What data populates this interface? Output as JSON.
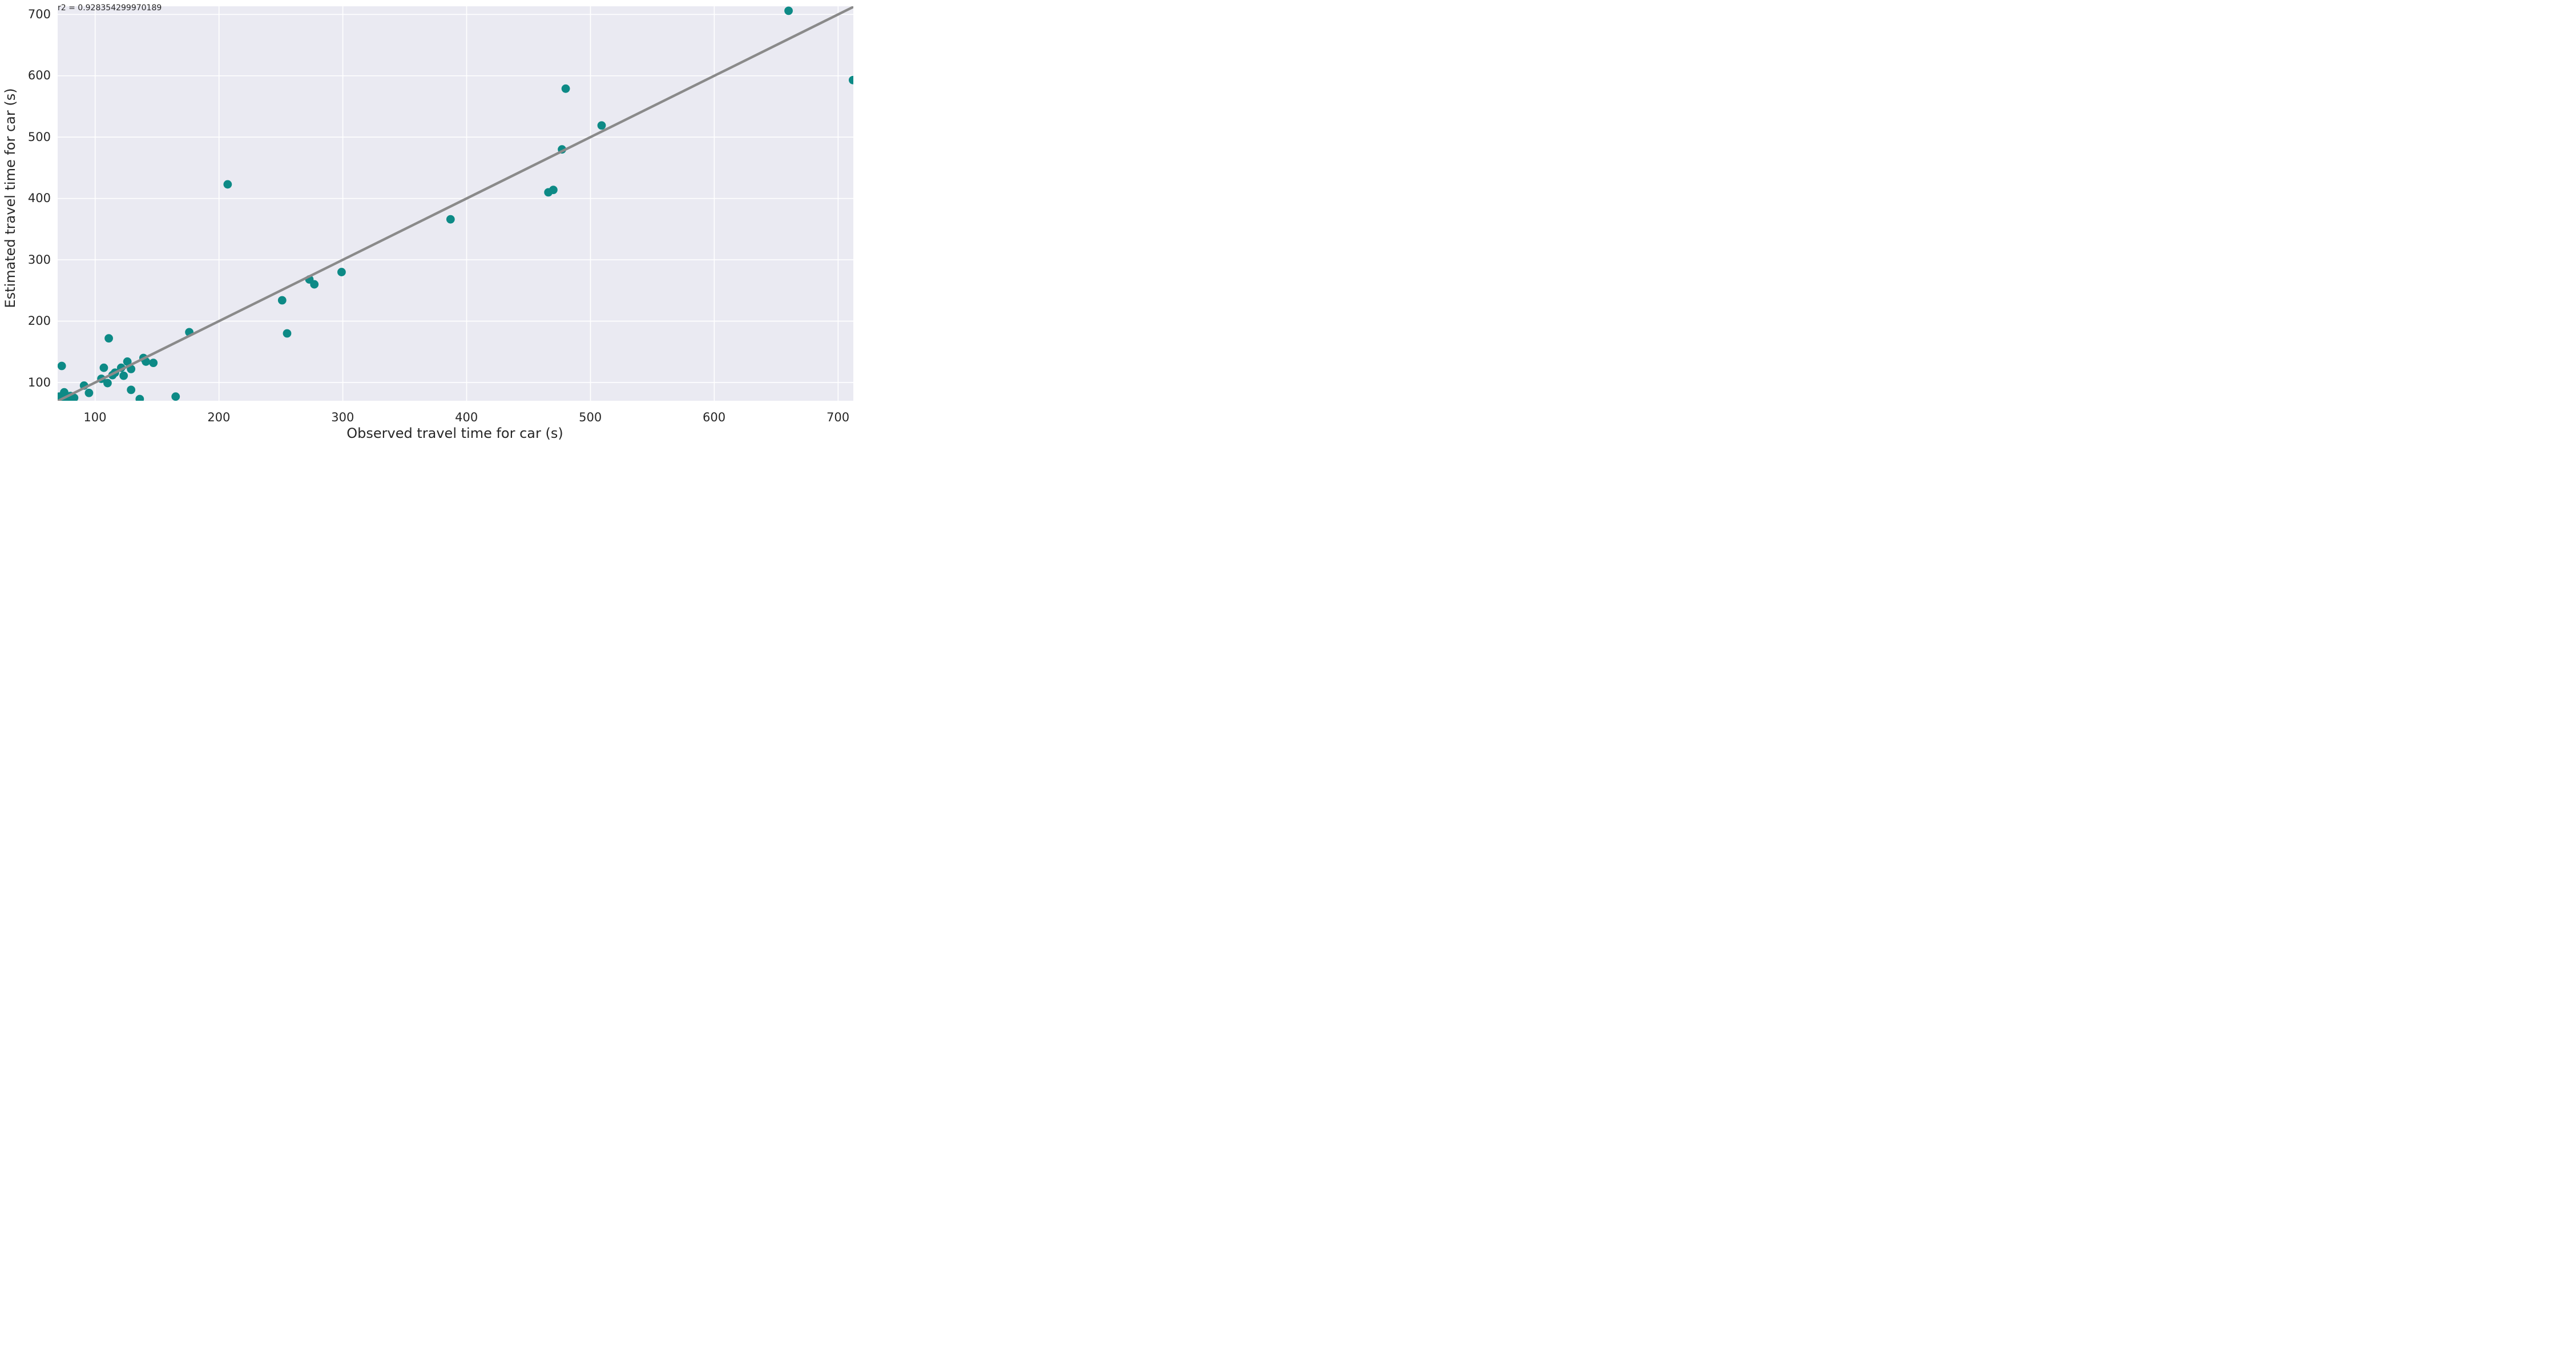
{
  "chart_data": {
    "type": "scatter",
    "title": "",
    "annotation": "r2 = 0.928354299970189",
    "xlabel": "Observed travel time for car (s)",
    "ylabel": "Estimated travel time for car (s)",
    "x_ticks": [
      100,
      200,
      300,
      400,
      500,
      600,
      700
    ],
    "y_ticks": [
      100,
      200,
      300,
      400,
      500,
      600,
      700
    ],
    "xlim": [
      69.7,
      712.3
    ],
    "ylim": [
      70.2,
      713.3
    ],
    "grid": true,
    "legend": false,
    "identity_line": {
      "start": 70.2,
      "end": 712.3
    },
    "series": [
      {
        "name": "car travel times",
        "marker": "circle",
        "color": "#0d8a86",
        "points": [
          [
            71,
            77
          ],
          [
            73,
            71
          ],
          [
            73,
            127
          ],
          [
            75,
            84
          ],
          [
            76,
            76
          ],
          [
            78,
            71
          ],
          [
            80,
            78
          ],
          [
            83,
            75
          ],
          [
            91,
            95
          ],
          [
            95,
            83
          ],
          [
            105,
            106
          ],
          [
            107,
            124
          ],
          [
            110,
            99
          ],
          [
            111,
            172
          ],
          [
            114,
            112
          ],
          [
            116,
            116
          ],
          [
            121,
            124
          ],
          [
            123,
            111
          ],
          [
            126,
            134
          ],
          [
            129,
            122
          ],
          [
            129,
            88
          ],
          [
            136,
            73
          ],
          [
            139,
            140
          ],
          [
            141,
            134
          ],
          [
            147,
            132
          ],
          [
            165,
            77
          ],
          [
            176,
            182
          ],
          [
            207,
            423
          ],
          [
            251,
            234
          ],
          [
            255,
            180
          ],
          [
            273,
            268
          ],
          [
            277,
            260
          ],
          [
            299,
            280
          ],
          [
            387,
            366
          ],
          [
            466,
            410
          ],
          [
            470,
            414
          ],
          [
            477,
            480
          ],
          [
            480,
            579
          ],
          [
            509,
            519
          ],
          [
            660,
            706
          ],
          [
            712,
            593
          ]
        ]
      }
    ],
    "colors": {
      "plot_background": "#eaeaf2",
      "gridline": "#ffffff",
      "identity_line": "#8a8a8a",
      "marker": "#0d8a86",
      "text": "#262626"
    },
    "style": {
      "marker_radius": 7.4,
      "identity_line_width": 4.4,
      "gridline_width": 1.6
    }
  }
}
